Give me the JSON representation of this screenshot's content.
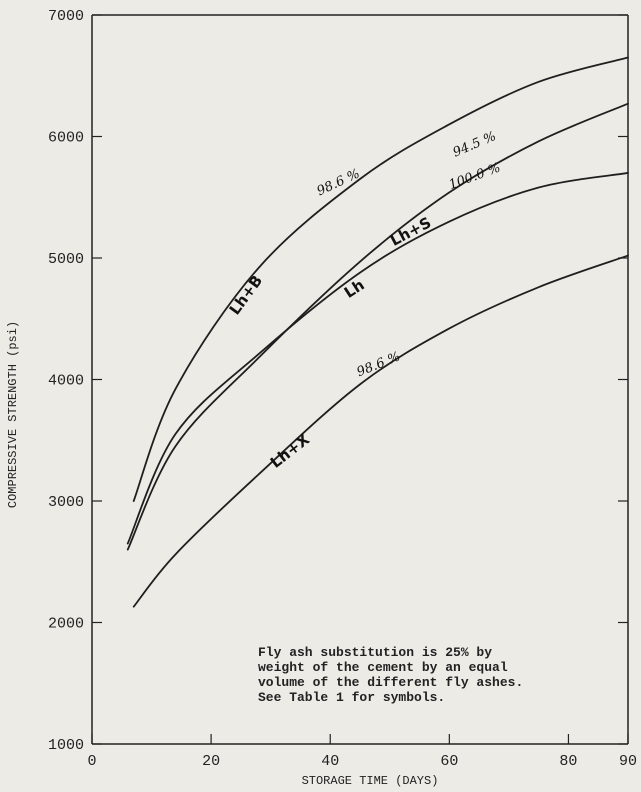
{
  "chart_data": {
    "type": "line",
    "xlabel": "STORAGE TIME (DAYS)",
    "ylabel": "COMPRESSIVE STRENGTH (psi)",
    "xlim": [
      0,
      90
    ],
    "ylim": [
      1000,
      7000
    ],
    "xticks": [
      "0",
      "20",
      "40",
      "60",
      "80",
      "90"
    ],
    "yticks": [
      "1000",
      "2000",
      "3000",
      "4000",
      "5000",
      "6000",
      "7000"
    ],
    "grid": false,
    "note": [
      "Fly ash substitution is 25% by",
      "weight of the cement by an equal",
      "volume of the different fly ashes.",
      "See Table 1 for symbols."
    ],
    "series": [
      {
        "name": "Lh+B",
        "annotation": "98.6 %",
        "x": [
          7,
          14,
          28,
          45,
          60,
          75,
          90
        ],
        "y": [
          3000,
          3920,
          4920,
          5650,
          6100,
          6450,
          6650
        ]
      },
      {
        "name": "Lh+S",
        "annotation": "94.5 %",
        "x": [
          6,
          14,
          28,
          45,
          60,
          75,
          90
        ],
        "y": [
          2600,
          3450,
          4180,
          4970,
          5540,
          5960,
          6270
        ]
      },
      {
        "name": "Lh",
        "annotation": "100.0 %",
        "x": [
          6,
          14,
          28,
          45,
          60,
          75,
          90
        ],
        "y": [
          2650,
          3550,
          4210,
          4880,
          5300,
          5580,
          5700
        ]
      },
      {
        "name": "Lh+X",
        "annotation": "98.6 %",
        "x": [
          7,
          14,
          28,
          45,
          60,
          75,
          90
        ],
        "y": [
          2130,
          2560,
          3220,
          3960,
          4420,
          4760,
          5020
        ]
      }
    ]
  }
}
